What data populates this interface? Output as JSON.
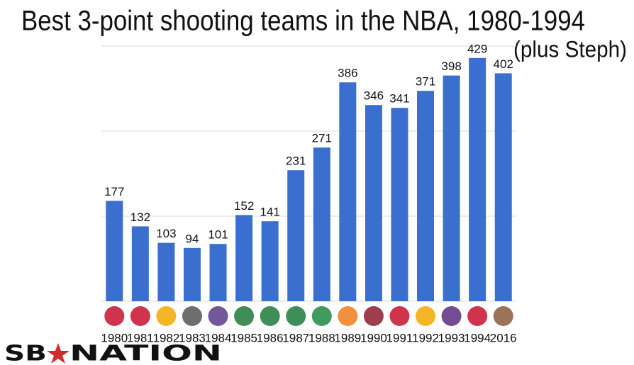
{
  "chart_data": {
    "type": "bar",
    "title": "Best 3-point shooting teams in the NBA, 1980-1994",
    "subtitle": "(plus Steph)",
    "categories": [
      "1980",
      "1981",
      "1982",
      "1983",
      "1984",
      "1985",
      "1986",
      "1987",
      "1988",
      "1989",
      "1990",
      "1991",
      "1992",
      "1993",
      "1994",
      "2016"
    ],
    "values": [
      177,
      132,
      103,
      94,
      101,
      152,
      141,
      231,
      271,
      386,
      346,
      341,
      371,
      398,
      429,
      402
    ],
    "color": "#3a6fcf",
    "ylim": [
      0,
      450
    ],
    "yticks": [
      0,
      150,
      300,
      450
    ],
    "grid": true,
    "brand": [
      "SB",
      "NATION"
    ]
  }
}
